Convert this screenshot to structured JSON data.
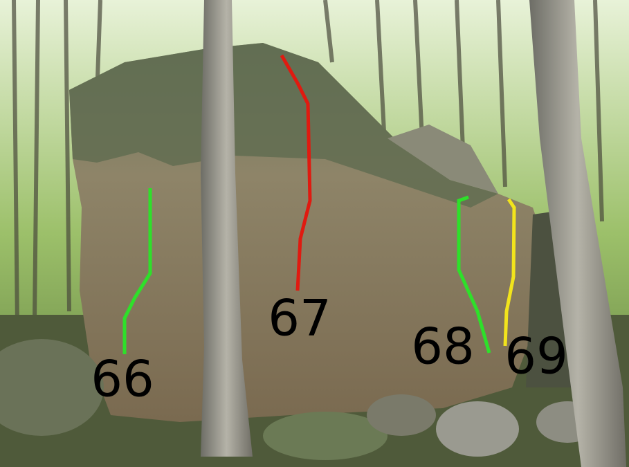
{
  "routes": [
    {
      "label": "66"
    },
    {
      "label": "67"
    },
    {
      "label": "68"
    },
    {
      "label": "69"
    }
  ]
}
